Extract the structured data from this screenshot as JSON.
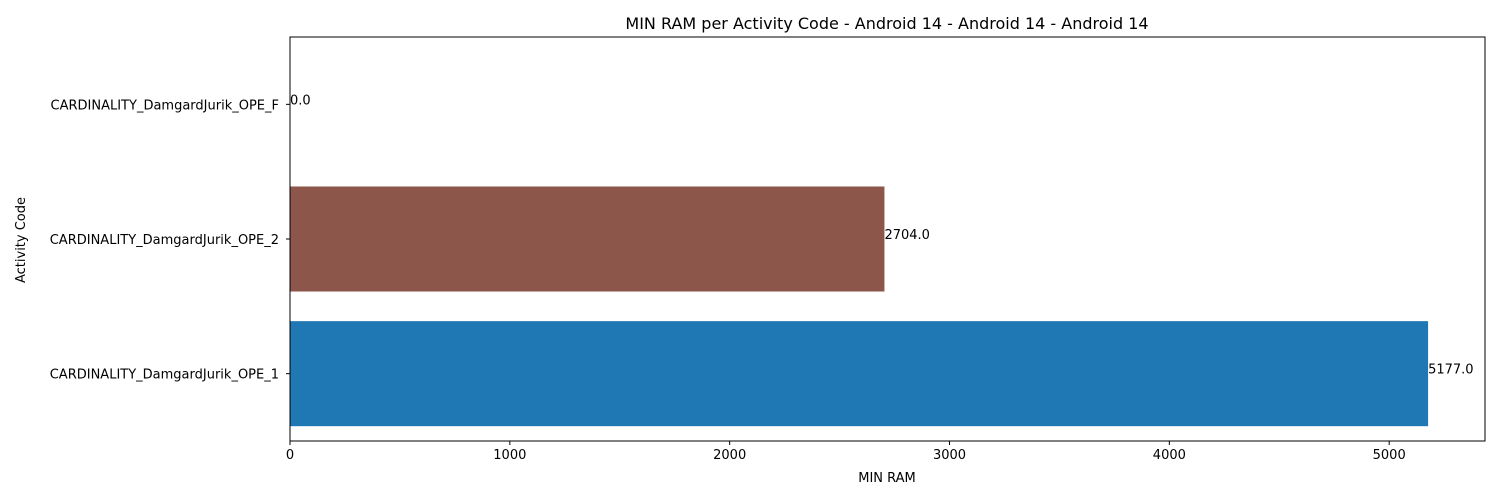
{
  "chart_data": {
    "type": "bar",
    "orientation": "horizontal",
    "title": "MIN RAM per Activity Code - Android 14 - Android 14 - Android 14",
    "xlabel": "MIN RAM",
    "ylabel": "Activity Code",
    "categories": [
      "CARDINALITY_DamgardJurik_OPE_1",
      "CARDINALITY_DamgardJurik_OPE_2",
      "CARDINALITY_DamgardJurik_OPE_F"
    ],
    "values": [
      5177.0,
      2704.0,
      0.0
    ],
    "value_labels": [
      "5177.0",
      "2704.0",
      "0.0"
    ],
    "colors": [
      "#1f77b4",
      "#8c564b",
      "#e377c2"
    ],
    "xlim": [
      0,
      5435.85
    ],
    "xticks": [
      0,
      1000,
      2000,
      3000,
      4000,
      5000
    ],
    "xtick_labels": [
      "0",
      "1000",
      "2000",
      "3000",
      "4000",
      "5000"
    ],
    "grid": false,
    "legend": "none"
  }
}
